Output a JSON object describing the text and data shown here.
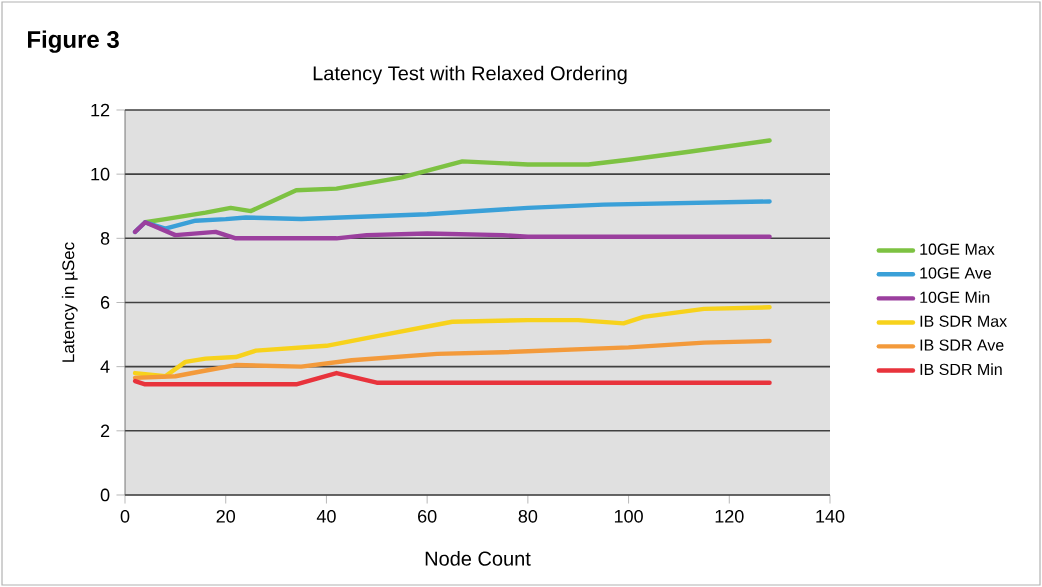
{
  "chart_data": {
    "type": "line",
    "title": "Latency Test with Relaxed Ordering",
    "xlabel": "Node Count",
    "ylabel": "Latency in µSec",
    "annotations": [
      "Figure 3"
    ],
    "xlim": [
      0,
      140
    ],
    "ylim": [
      0,
      12
    ],
    "xticks": [
      0,
      20,
      40,
      60,
      80,
      100,
      120,
      140
    ],
    "yticks": [
      0,
      2,
      4,
      6,
      8,
      10,
      12
    ],
    "grid": "y",
    "legend": "right",
    "marker": "none",
    "line_style": "solid",
    "series": [
      {
        "name": "10GE Max",
        "color": "#7dc242",
        "x": [
          4,
          8,
          16,
          21,
          25,
          34,
          42,
          55,
          67,
          80,
          92,
          100,
          112,
          128
        ],
        "values": [
          8.5,
          8.6,
          8.8,
          8.95,
          8.85,
          9.5,
          9.55,
          9.9,
          10.4,
          10.3,
          10.3,
          10.45,
          10.7,
          11.05
        ]
      },
      {
        "name": "10GE Ave",
        "color": "#3aa0d8",
        "x": [
          2,
          4,
          8,
          14,
          20,
          24,
          35,
          60,
          80,
          95,
          128
        ],
        "values": [
          8.2,
          8.5,
          8.3,
          8.55,
          8.6,
          8.65,
          8.6,
          8.75,
          8.95,
          9.05,
          9.15
        ]
      },
      {
        "name": "10GE Min",
        "color": "#9b3f9e",
        "x": [
          2,
          4,
          10,
          18,
          22,
          42,
          48,
          60,
          75,
          80,
          128
        ],
        "values": [
          8.2,
          8.5,
          8.1,
          8.2,
          8.0,
          8.0,
          8.1,
          8.15,
          8.1,
          8.05,
          8.05
        ]
      },
      {
        "name": "IB SDR Max",
        "color": "#f7d21c",
        "x": [
          2,
          8,
          12,
          16,
          22,
          26,
          40,
          50,
          65,
          80,
          90,
          99,
          103,
          115,
          128
        ],
        "values": [
          3.8,
          3.7,
          4.15,
          4.25,
          4.3,
          4.5,
          4.65,
          4.95,
          5.4,
          5.45,
          5.45,
          5.35,
          5.55,
          5.8,
          5.85
        ]
      },
      {
        "name": "IB SDR Ave",
        "color": "#f39a3b",
        "x": [
          2,
          10,
          15,
          22,
          35,
          45,
          62,
          75,
          100,
          115,
          128
        ],
        "values": [
          3.65,
          3.7,
          3.85,
          4.05,
          4.0,
          4.2,
          4.4,
          4.45,
          4.6,
          4.75,
          4.8
        ]
      },
      {
        "name": "IB SDR Min",
        "color": "#e8333c",
        "x": [
          2,
          4,
          34,
          42,
          50,
          128
        ],
        "values": [
          3.55,
          3.45,
          3.45,
          3.8,
          3.5,
          3.5
        ]
      }
    ]
  }
}
